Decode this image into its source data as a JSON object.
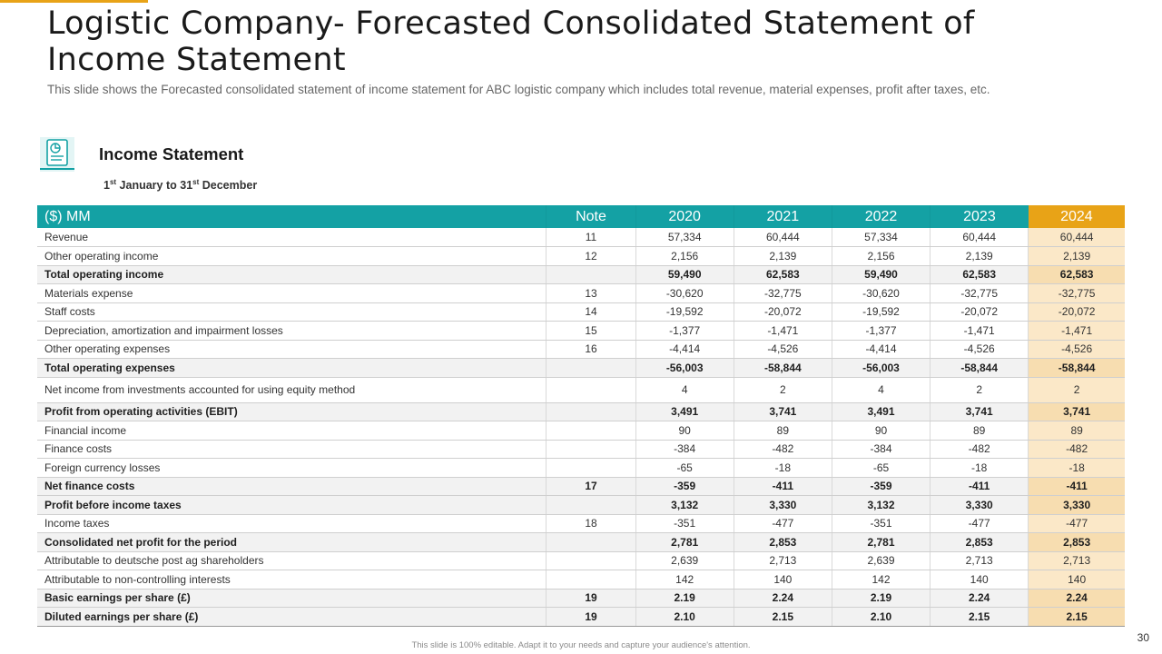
{
  "header": {
    "title": "Logistic Company- Forecasted Consolidated Statement of Income Statement",
    "subtitle": "This slide shows the Forecasted consolidated statement of income statement for ABC logistic company which includes total revenue, material expenses, profit after taxes, etc."
  },
  "section": {
    "icon": "document-report-icon",
    "title": "Income Statement",
    "period": {
      "from_day": "1",
      "from_suffix": "st",
      "from_text": " January to ",
      "to_day": "31",
      "to_suffix": "st",
      "to_text": " December"
    }
  },
  "table": {
    "columns": [
      "($) MM",
      "Note",
      "2020",
      "2021",
      "2022",
      "2023",
      "2024"
    ],
    "highlight_column": 6,
    "colors": {
      "header": "#14a1a4",
      "highlight": "#e8a317",
      "highlight_cell": "#fbe8c8"
    },
    "rows": [
      {
        "label": "Revenue",
        "note": "11",
        "values": [
          "57,334",
          "60,444",
          "57,334",
          "60,444",
          "60,444"
        ],
        "bold": false
      },
      {
        "label": "Other operating income",
        "note": "12",
        "values": [
          "2,156",
          "2,139",
          "2,156",
          "2,139",
          "2,139"
        ],
        "bold": false
      },
      {
        "label": "Total operating income",
        "note": "",
        "values": [
          "59,490",
          "62,583",
          "59,490",
          "62,583",
          "62,583"
        ],
        "bold": true
      },
      {
        "label": "Materials expense",
        "note": "13",
        "values": [
          "-30,620",
          "-32,775",
          "-30,620",
          "-32,775",
          "-32,775"
        ],
        "bold": false
      },
      {
        "label": "Staff costs",
        "note": "14",
        "values": [
          "-19,592",
          "-20,072",
          "-19,592",
          "-20,072",
          "-20,072"
        ],
        "bold": false
      },
      {
        "label": "Depreciation, amortization and impairment losses",
        "note": "15",
        "values": [
          "-1,377",
          "-1,471",
          "-1,377",
          "-1,471",
          "-1,471"
        ],
        "bold": false
      },
      {
        "label": "Other operating expenses",
        "note": "16",
        "values": [
          "-4,414",
          "-4,526",
          "-4,414",
          "-4,526",
          "-4,526"
        ],
        "bold": false
      },
      {
        "label": "Total operating expenses",
        "note": "",
        "values": [
          "-56,003",
          "-58,844",
          "-56,003",
          "-58,844",
          "-58,844"
        ],
        "bold": true
      },
      {
        "label": "Net income from investments accounted for using equity method",
        "note": "",
        "values": [
          "4",
          "2",
          "4",
          "2",
          "2"
        ],
        "bold": false,
        "tall": true
      },
      {
        "label": "Profit from operating activities (EBIT)",
        "note": "",
        "values": [
          "3,491",
          "3,741",
          "3,491",
          "3,741",
          "3,741"
        ],
        "bold": true
      },
      {
        "label": "Financial income",
        "note": "",
        "values": [
          "90",
          "89",
          "90",
          "89",
          "89"
        ],
        "bold": false
      },
      {
        "label": "Finance costs",
        "note": "",
        "values": [
          "-384",
          "-482",
          "-384",
          "-482",
          "-482"
        ],
        "bold": false
      },
      {
        "label": "Foreign currency losses",
        "note": "",
        "values": [
          "-65",
          "-18",
          "-65",
          "-18",
          "-18"
        ],
        "bold": false
      },
      {
        "label": "Net finance costs",
        "note": "17",
        "values": [
          "-359",
          "-411",
          "-359",
          "-411",
          "-411"
        ],
        "bold": true
      },
      {
        "label": "Profit before income taxes",
        "note": "",
        "values": [
          "3,132",
          "3,330",
          "3,132",
          "3,330",
          "3,330"
        ],
        "bold": true
      },
      {
        "label": "Income taxes",
        "note": "18",
        "values": [
          "-351",
          "-477",
          "-351",
          "-477",
          "-477"
        ],
        "bold": false
      },
      {
        "label": "Consolidated net profit for the period",
        "note": "",
        "values": [
          "2,781",
          "2,853",
          "2,781",
          "2,853",
          "2,853"
        ],
        "bold": true
      },
      {
        "label": "Attributable to deutsche post ag shareholders",
        "note": "",
        "values": [
          "2,639",
          "2,713",
          "2,639",
          "2,713",
          "2,713"
        ],
        "bold": false
      },
      {
        "label": "Attributable to non-controlling interests",
        "note": "",
        "values": [
          "142",
          "140",
          "142",
          "140",
          "140"
        ],
        "bold": false
      },
      {
        "label": "Basic earnings per share (£)",
        "note": "19",
        "values": [
          "2.19",
          "2.24",
          "2.19",
          "2.24",
          "2.24"
        ],
        "bold": true
      },
      {
        "label": "Diluted earnings per share (£)",
        "note": "19",
        "values": [
          "2.10",
          "2.15",
          "2.10",
          "2.15",
          "2.15"
        ],
        "bold": true
      }
    ]
  },
  "footer": {
    "page_number": "30",
    "note": "This slide is 100% editable. Adapt it to your needs and capture your audience's attention."
  }
}
